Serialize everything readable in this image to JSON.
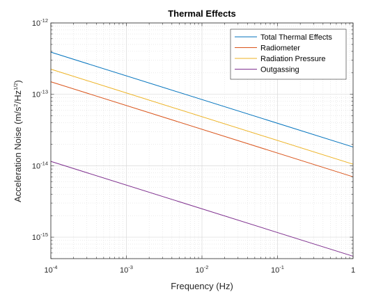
{
  "chart_data": {
    "type": "line",
    "title": "Thermal Effects",
    "xlabel": "Frequency (Hz)",
    "ylabel": {
      "base": "Acceleration Noise (m/s",
      "sup1": "2",
      "mid": "/Hz",
      "sup2": "1/2",
      "end": ")"
    },
    "xscale": "log",
    "yscale": "log",
    "xlim": [
      0.0001,
      1
    ],
    "ylim": [
      5e-16,
      1e-12
    ],
    "grid": true,
    "minor_grid": true,
    "legend_position": "top-right",
    "x_ticks": [
      {
        "base": "10",
        "exp": "-4"
      },
      {
        "base": "10",
        "exp": "-3"
      },
      {
        "base": "10",
        "exp": "-2"
      },
      {
        "base": "10",
        "exp": "-1"
      },
      {
        "base": "10",
        "exp": "0",
        "plain": "1"
      }
    ],
    "y_ticks": [
      {
        "base": "10",
        "exp": "-15"
      },
      {
        "base": "10",
        "exp": "-14"
      },
      {
        "base": "10",
        "exp": "-13"
      },
      {
        "base": "10",
        "exp": "-12"
      }
    ],
    "x": [
      0.0001,
      1
    ],
    "series": [
      {
        "name": "Total Thermal Effects",
        "color": "#0072BD",
        "values": [
          3.9e-13,
          1.83e-14
        ]
      },
      {
        "name": "Radiometer",
        "color": "#D95319",
        "values": [
          1.5e-13,
          7e-15
        ]
      },
      {
        "name": "Radiation Pressure",
        "color": "#EDB120",
        "values": [
          2.25e-13,
          1.05e-14
        ]
      },
      {
        "name": "Outgassing",
        "color": "#7E2F8E",
        "values": [
          1.15e-14,
          5.4e-16
        ]
      }
    ]
  }
}
